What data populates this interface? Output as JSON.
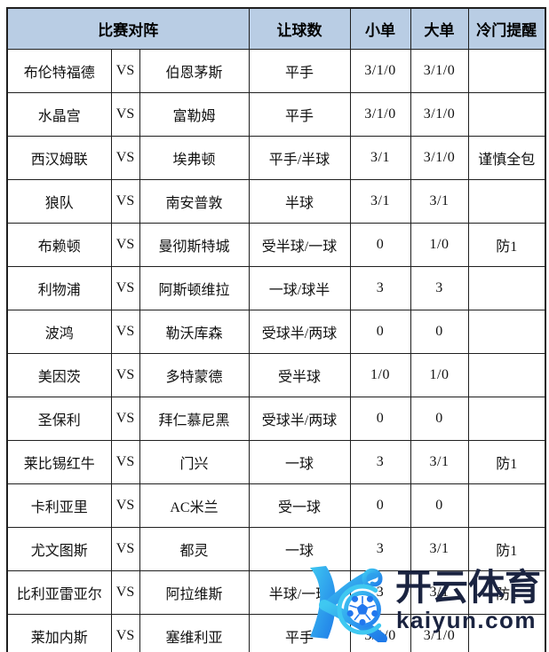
{
  "table": {
    "headers": [
      "比赛对阵",
      "让球数",
      "小单",
      "大单",
      "冷门提醒"
    ],
    "vs_label": "VS",
    "rows": [
      {
        "home": "布伦特福德",
        "away": "伯恩茅斯",
        "handicap": "平手",
        "small": "3/1/0",
        "big": "3/1/0",
        "cold": ""
      },
      {
        "home": "水晶宫",
        "away": "富勒姆",
        "handicap": "平手",
        "small": "3/1/0",
        "big": "3/1/0",
        "cold": ""
      },
      {
        "home": "西汉姆联",
        "away": "埃弗顿",
        "handicap": "平手/半球",
        "small": "3/1",
        "big": "3/1/0",
        "cold": "谨慎全包"
      },
      {
        "home": "狼队",
        "away": "南安普敦",
        "handicap": "半球",
        "small": "3/1",
        "big": "3/1",
        "cold": ""
      },
      {
        "home": "布赖顿",
        "away": "曼彻斯特城",
        "handicap": "受半球/一球",
        "small": "0",
        "big": "1/0",
        "cold": "防1"
      },
      {
        "home": "利物浦",
        "away": "阿斯顿维拉",
        "handicap": "一球/球半",
        "small": "3",
        "big": "3",
        "cold": ""
      },
      {
        "home": "波鸿",
        "away": "勒沃库森",
        "handicap": "受球半/两球",
        "small": "0",
        "big": "0",
        "cold": ""
      },
      {
        "home": "美因茨",
        "away": "多特蒙德",
        "handicap": "受半球",
        "small": "1/0",
        "big": "1/0",
        "cold": ""
      },
      {
        "home": "圣保利",
        "away": "拜仁慕尼黑",
        "handicap": "受球半/两球",
        "small": "0",
        "big": "0",
        "cold": ""
      },
      {
        "home": "莱比锡红牛",
        "away": "门兴",
        "handicap": "一球",
        "small": "3",
        "big": "3/1",
        "cold": "防1"
      },
      {
        "home": "卡利亚里",
        "away": "AC米兰",
        "handicap": "受一球",
        "small": "0",
        "big": "0",
        "cold": ""
      },
      {
        "home": "尤文图斯",
        "away": "都灵",
        "handicap": "一球",
        "small": "3",
        "big": "3/1",
        "cold": "防1"
      },
      {
        "home": "比利亚雷亚尔",
        "away": "阿拉维斯",
        "handicap": "半球/一球",
        "small": "3",
        "big": "3/1",
        "cold": "防1"
      },
      {
        "home": "莱加内斯",
        "away": "塞维利亚",
        "handicap": "平手",
        "small": "3/1/0",
        "big": "3/1/0",
        "cold": ""
      }
    ]
  },
  "watermark": {
    "brand_cn": "开云体育",
    "brand_domain": "kaiyun.com",
    "logo_icon": "kaiyun-k-ball-logo"
  },
  "colors": {
    "header-bg": "#b9cde4",
    "grid-border": "#1f1f1f",
    "wm-navy": "#1a2340",
    "wm-cyan": "#3fc8f1",
    "wm-blue": "#1f7ae8",
    "wm-ball-blue": "#2277ee"
  }
}
